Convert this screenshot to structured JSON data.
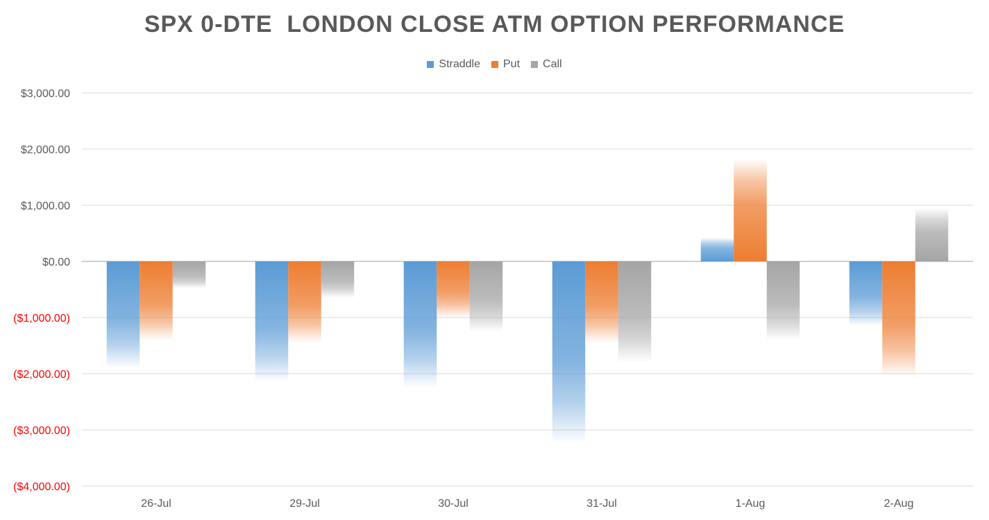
{
  "chart_data": {
    "type": "bar",
    "title": "SPX 0-DTE  LONDON CLOSE ATM OPTION PERFORMANCE",
    "categories": [
      "26-Jul",
      "29-Jul",
      "30-Jul",
      "31-Jul",
      "1-Aug",
      "2-Aug"
    ],
    "series": [
      {
        "name": "Straddle",
        "color": "#5b9bd5",
        "values": [
          -1900,
          -2150,
          -2250,
          -3250,
          420,
          -1150
        ]
      },
      {
        "name": "Put",
        "color": "#ed7d31",
        "values": [
          -1400,
          -1450,
          -1000,
          -1450,
          1830,
          -2050
        ]
      },
      {
        "name": "Call",
        "color": "#a5a5a5",
        "values": [
          -480,
          -650,
          -1250,
          -1800,
          -1400,
          950
        ]
      }
    ],
    "ylim": [
      -4000,
      3000
    ],
    "yticks": [
      3000,
      2000,
      1000,
      0,
      -1000,
      -2000,
      -3000,
      -4000
    ],
    "ytick_labels": [
      "$3,000.00",
      "$2,000.00",
      "$1,000.00",
      "$0.00",
      "($1,000.00)",
      "($2,000.00)",
      "($3,000.00)",
      "($4,000.00)"
    ],
    "negative_label_color": "#ff0000",
    "xlabel": "",
    "ylabel": "",
    "grid": true,
    "legend_position": "top-center"
  }
}
